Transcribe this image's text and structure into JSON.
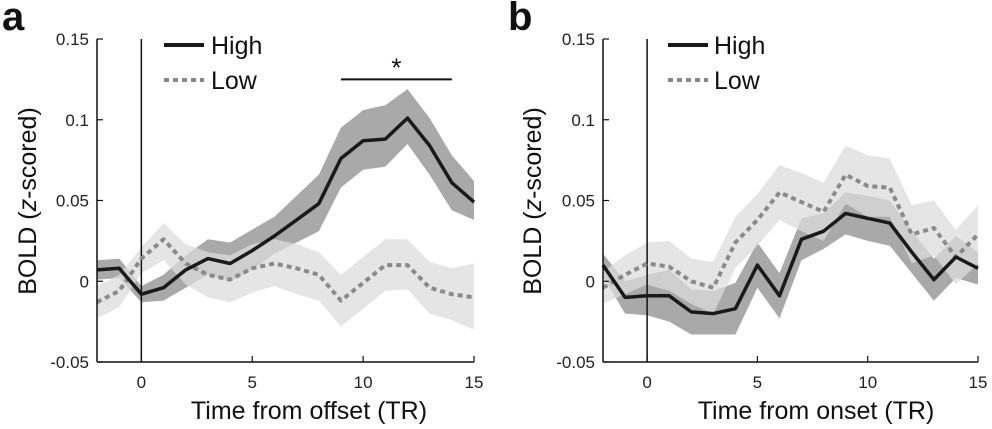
{
  "chart_data": [
    {
      "type": "line",
      "panel": "a",
      "xlabel": "Time from offset (TR)",
      "ylabel_prefix": "BOLD (",
      "ylabel_italic": "z",
      "ylabel_suffix": "-scored)",
      "xlim": [
        -2,
        15
      ],
      "ylim": [
        -0.05,
        0.15
      ],
      "xticks": [
        {
          "v": 0,
          "label": "0"
        },
        {
          "v": 5,
          "label": "5"
        },
        {
          "v": 10,
          "label": "10"
        },
        {
          "v": 15,
          "label": "15"
        }
      ],
      "yticks": [
        {
          "v": -0.05,
          "label": "-0.05"
        },
        {
          "v": 0,
          "label": "0"
        },
        {
          "v": 0.05,
          "label": "0.05"
        },
        {
          "v": 0.1,
          "label": "0.1"
        },
        {
          "v": 0.15,
          "label": "0.15"
        }
      ],
      "vline_x": 0,
      "x": [
        -2,
        -1,
        0,
        1,
        2,
        3,
        4,
        5,
        6,
        7,
        8,
        9,
        10,
        11,
        12,
        13,
        14,
        15
      ],
      "series": [
        {
          "name": "High",
          "style": "solid",
          "color": "#1a1a1a",
          "band_color": "#9a9a9a",
          "values": [
            0.007,
            0.008,
            -0.008,
            -0.004,
            0.007,
            0.014,
            0.011,
            0.019,
            0.028,
            0.038,
            0.048,
            0.076,
            0.087,
            0.088,
            0.101,
            0.084,
            0.061,
            0.049
          ],
          "lower": [
            0.001,
            0.002,
            -0.013,
            -0.012,
            -0.004,
            0.004,
            0.0,
            0.007,
            0.017,
            0.024,
            0.031,
            0.058,
            0.069,
            0.071,
            0.085,
            0.066,
            0.044,
            0.038
          ],
          "upper": [
            0.013,
            0.014,
            -0.003,
            0.004,
            0.016,
            0.026,
            0.024,
            0.032,
            0.04,
            0.053,
            0.066,
            0.095,
            0.106,
            0.109,
            0.119,
            0.101,
            0.078,
            0.062
          ]
        },
        {
          "name": "Low",
          "style": "dashed",
          "color": "#8a8a8a",
          "band_color": "#dcdcdc",
          "values": [
            -0.013,
            -0.006,
            0.014,
            0.026,
            0.011,
            0.004,
            0.001,
            0.008,
            0.011,
            0.008,
            0.004,
            -0.012,
            -0.001,
            0.01,
            0.01,
            -0.004,
            -0.008,
            -0.01
          ],
          "lower": [
            -0.023,
            -0.016,
            0.005,
            0.013,
            -0.002,
            -0.01,
            -0.013,
            -0.007,
            -0.003,
            -0.008,
            -0.012,
            -0.028,
            -0.017,
            -0.006,
            -0.005,
            -0.02,
            -0.024,
            -0.03
          ],
          "upper": [
            -0.003,
            0.004,
            0.021,
            0.036,
            0.023,
            0.018,
            0.016,
            0.023,
            0.026,
            0.023,
            0.018,
            0.004,
            0.015,
            0.026,
            0.026,
            0.012,
            0.008,
            0.011
          ]
        }
      ],
      "significance": {
        "x_start": 9,
        "x_end": 14,
        "y": 0.125,
        "label": "*"
      },
      "legend": [
        {
          "label": "High",
          "style": "solid"
        },
        {
          "label": "Low",
          "style": "dashed"
        }
      ]
    },
    {
      "type": "line",
      "panel": "b",
      "xlabel": "Time from onset (TR)",
      "ylabel_prefix": "BOLD (",
      "ylabel_italic": "z",
      "ylabel_suffix": "-scored)",
      "xlim": [
        -2,
        15
      ],
      "ylim": [
        -0.05,
        0.15
      ],
      "xticks": [
        {
          "v": 0,
          "label": "0"
        },
        {
          "v": 5,
          "label": "5"
        },
        {
          "v": 10,
          "label": "10"
        },
        {
          "v": 15,
          "label": "15"
        }
      ],
      "yticks": [
        {
          "v": -0.05,
          "label": "-0.05"
        },
        {
          "v": 0,
          "label": "0"
        },
        {
          "v": 0.05,
          "label": "0.05"
        },
        {
          "v": 0.1,
          "label": "0.1"
        },
        {
          "v": 0.15,
          "label": "0.15"
        }
      ],
      "vline_x": 0,
      "x": [
        -2,
        -1,
        0,
        1,
        2,
        3,
        4,
        5,
        6,
        7,
        8,
        9,
        10,
        11,
        12,
        13,
        14,
        15
      ],
      "series": [
        {
          "name": "High",
          "style": "solid",
          "color": "#1a1a1a",
          "band_color": "#9a9a9a",
          "values": [
            0.01,
            -0.01,
            -0.009,
            -0.009,
            -0.019,
            -0.02,
            -0.017,
            0.01,
            -0.009,
            0.026,
            0.031,
            0.042,
            0.039,
            0.036,
            0.018,
            0.001,
            0.015,
            0.008
          ],
          "lower": [
            0.003,
            -0.02,
            -0.021,
            -0.025,
            -0.033,
            -0.033,
            -0.033,
            -0.004,
            -0.023,
            0.013,
            0.02,
            0.029,
            0.025,
            0.022,
            0.005,
            -0.012,
            0.002,
            -0.002
          ],
          "upper": [
            0.017,
            0.0,
            0.004,
            0.007,
            -0.005,
            -0.006,
            -0.001,
            0.024,
            0.005,
            0.039,
            0.042,
            0.055,
            0.053,
            0.05,
            0.031,
            0.014,
            0.028,
            0.018
          ]
        },
        {
          "name": "Low",
          "style": "dashed",
          "color": "#8a8a8a",
          "band_color": "#dcdcdc",
          "values": [
            -0.004,
            0.004,
            0.011,
            0.009,
            0.0,
            -0.004,
            0.024,
            0.038,
            0.055,
            0.049,
            0.043,
            0.066,
            0.059,
            0.058,
            0.029,
            0.033,
            0.015,
            0.029
          ],
          "lower": [
            -0.014,
            -0.008,
            -0.002,
            -0.006,
            -0.014,
            -0.02,
            0.008,
            0.022,
            0.038,
            0.031,
            0.025,
            0.048,
            0.04,
            0.04,
            0.011,
            0.016,
            -0.002,
            0.011
          ],
          "upper": [
            0.006,
            0.016,
            0.024,
            0.025,
            0.014,
            0.012,
            0.04,
            0.054,
            0.072,
            0.067,
            0.061,
            0.084,
            0.078,
            0.076,
            0.047,
            0.05,
            0.032,
            0.047
          ]
        }
      ],
      "significance": null,
      "legend": [
        {
          "label": "High",
          "style": "solid"
        },
        {
          "label": "Low",
          "style": "dashed"
        }
      ]
    }
  ]
}
